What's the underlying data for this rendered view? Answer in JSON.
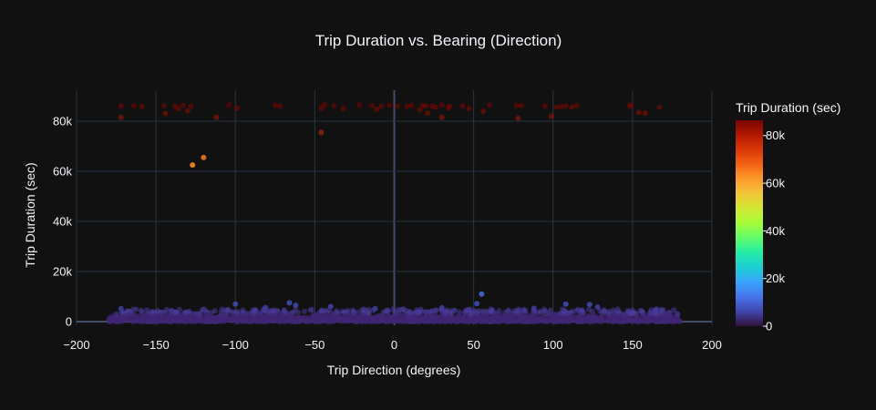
{
  "chart_data": {
    "type": "scatter",
    "title": "Trip Duration vs. Bearing (Direction)",
    "xlabel": "Trip Direction (degrees)",
    "ylabel": "Trip Duration (sec)",
    "xlim": [
      -200,
      200
    ],
    "ylim": [
      -3000,
      92000
    ],
    "x_ticks": [
      -200,
      -150,
      -100,
      -50,
      0,
      50,
      100,
      150,
      200
    ],
    "x_tick_labels": [
      "−200",
      "−150",
      "−100",
      "−50",
      "0",
      "50",
      "100",
      "150",
      "200"
    ],
    "y_ticks": [
      0,
      20000,
      40000,
      60000,
      80000
    ],
    "y_tick_labels": [
      "0",
      "20k",
      "40k",
      "60k",
      "80k"
    ],
    "grid": true,
    "colorbar": {
      "title": "Trip Duration (sec)",
      "range": [
        0,
        86400
      ],
      "ticks": [
        0,
        20000,
        40000,
        60000,
        80000
      ],
      "tick_labels": [
        "0",
        "20k",
        "40k",
        "60k",
        "80k"
      ],
      "colorscale": [
        "#30123b",
        "#4145ab",
        "#4675ed",
        "#39a2fc",
        "#1bcfd4",
        "#24eca6",
        "#61fc6c",
        "#a4fc3b",
        "#d1e834",
        "#f3c63a",
        "#fe9b2d",
        "#f36315",
        "#d93806",
        "#b11901",
        "#7a0402"
      ]
    },
    "dense_band": {
      "x_range": [
        -180,
        180
      ],
      "y_range": [
        0,
        5000
      ]
    },
    "points": [
      {
        "x": -172,
        "y": 86000
      },
      {
        "x": -172,
        "y": 81500
      },
      {
        "x": -164,
        "y": 86200
      },
      {
        "x": -159,
        "y": 85800
      },
      {
        "x": -145,
        "y": 86100
      },
      {
        "x": -144,
        "y": 83000
      },
      {
        "x": -138,
        "y": 86000
      },
      {
        "x": -136,
        "y": 85000
      },
      {
        "x": -133,
        "y": 86300
      },
      {
        "x": -130,
        "y": 84200
      },
      {
        "x": -128,
        "y": 86000
      },
      {
        "x": -127,
        "y": 62500
      },
      {
        "x": -120,
        "y": 65500
      },
      {
        "x": -112,
        "y": 81500
      },
      {
        "x": -104,
        "y": 86500
      },
      {
        "x": -99,
        "y": 85200
      },
      {
        "x": -75,
        "y": 86300
      },
      {
        "x": -72,
        "y": 86000
      },
      {
        "x": -46,
        "y": 75500
      },
      {
        "x": -46,
        "y": 85200
      },
      {
        "x": -44,
        "y": 86500
      },
      {
        "x": -38,
        "y": 86200
      },
      {
        "x": -32,
        "y": 85000
      },
      {
        "x": -22,
        "y": 86500
      },
      {
        "x": -14,
        "y": 86200
      },
      {
        "x": -11,
        "y": 84800
      },
      {
        "x": -8,
        "y": 86000
      },
      {
        "x": -3,
        "y": 86400
      },
      {
        "x": 2,
        "y": 86000
      },
      {
        "x": 8,
        "y": 85800
      },
      {
        "x": 11,
        "y": 86300
      },
      {
        "x": 16,
        "y": 84600
      },
      {
        "x": 18,
        "y": 86200
      },
      {
        "x": 20,
        "y": 86000
      },
      {
        "x": 21,
        "y": 83200
      },
      {
        "x": 24,
        "y": 86000
      },
      {
        "x": 26,
        "y": 85500
      },
      {
        "x": 30,
        "y": 86500
      },
      {
        "x": 34,
        "y": 85300
      },
      {
        "x": 35,
        "y": 86000
      },
      {
        "x": 43,
        "y": 86100
      },
      {
        "x": 47,
        "y": 85000
      },
      {
        "x": 56,
        "y": 84000
      },
      {
        "x": 60,
        "y": 86400
      },
      {
        "x": 77,
        "y": 86300
      },
      {
        "x": 78,
        "y": 81200
      },
      {
        "x": 80,
        "y": 86200
      },
      {
        "x": 95,
        "y": 86000
      },
      {
        "x": 99,
        "y": 82000
      },
      {
        "x": 102,
        "y": 85600
      },
      {
        "x": 105,
        "y": 85800
      },
      {
        "x": 108,
        "y": 86000
      },
      {
        "x": 112,
        "y": 85600
      },
      {
        "x": 115,
        "y": 86300
      },
      {
        "x": 148,
        "y": 86300
      },
      {
        "x": 149,
        "y": 86000
      },
      {
        "x": 154,
        "y": 83500
      },
      {
        "x": 158,
        "y": 83200
      },
      {
        "x": 167,
        "y": 85500
      },
      {
        "x": 30,
        "y": 81500
      },
      {
        "x": -100,
        "y": 7000
      },
      {
        "x": -66,
        "y": 7500
      },
      {
        "x": -62,
        "y": 6500
      },
      {
        "x": -40,
        "y": 6000
      },
      {
        "x": 55,
        "y": 11000
      },
      {
        "x": 52,
        "y": 7200
      },
      {
        "x": 108,
        "y": 7000
      },
      {
        "x": 123,
        "y": 6800
      },
      {
        "x": 128,
        "y": 5800
      },
      {
        "x": 30,
        "y": 5500
      },
      {
        "x": -12,
        "y": 5200
      },
      {
        "x": 88,
        "y": 5300
      },
      {
        "x": -172,
        "y": 5200
      },
      {
        "x": -81,
        "y": 5600
      },
      {
        "x": 165,
        "y": 5000
      },
      {
        "x": 38,
        "y": 4500
      },
      {
        "x": -140,
        "y": 4300
      }
    ]
  }
}
